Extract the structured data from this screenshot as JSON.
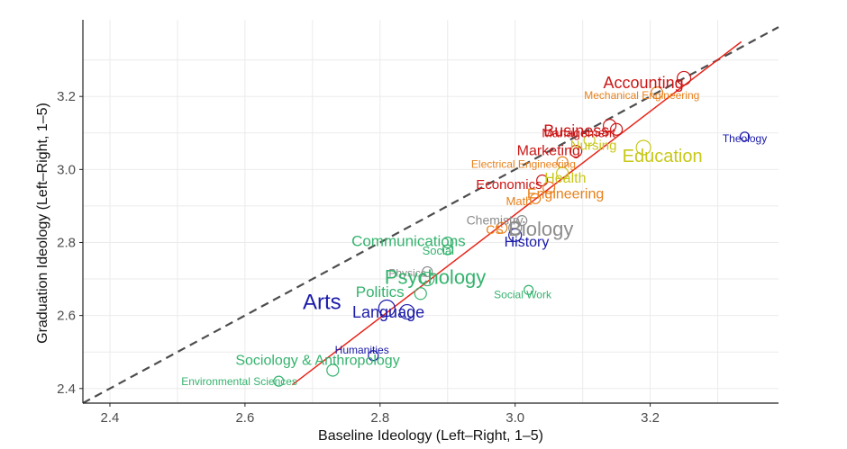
{
  "chart_data": {
    "type": "scatter",
    "title": "",
    "xlabel": "Baseline Ideology (Left–Right, 1–5)",
    "ylabel": "Graduation Ideology (Left–Right, 1–5)",
    "xlim": [
      2.36,
      3.39
    ],
    "ylim": [
      2.36,
      3.41
    ],
    "x_ticks": [
      2.4,
      2.6,
      2.8,
      3.0,
      3.2
    ],
    "y_ticks": [
      2.4,
      2.6,
      2.8,
      3.0,
      3.2
    ],
    "x_tick_labels": [
      "2.4",
      "2.6",
      "2.8",
      "3.0",
      "3.2"
    ],
    "y_tick_labels": [
      "2.4",
      "2.6",
      "2.8",
      "3.0",
      "3.2"
    ],
    "grid": true,
    "reference_line": {
      "style": "dashed",
      "color": "#4d4d4d",
      "x": [
        2.36,
        3.39
      ],
      "y": [
        2.36,
        3.39
      ]
    },
    "fit_line": {
      "color": "#e8251a",
      "x": [
        2.67,
        3.335
      ],
      "y": [
        2.41,
        3.35
      ]
    },
    "colors": {
      "red": "#cc1616",
      "orange": "#e8801a",
      "yellow": "#c8c81a",
      "gray": "#8c8c8c",
      "green": "#35b36e",
      "blue": "#1a1aaa"
    },
    "points": [
      {
        "label": "Accounting",
        "x": 3.25,
        "y": 3.25,
        "size": 15,
        "color": "#cc1616",
        "dx": -5,
        "dy": 1.21,
        "font": 18
      },
      {
        "label": "Mechanical Engineering",
        "x": 3.21,
        "y": 3.21,
        "size": 13,
        "color": "#e8801a",
        "dx": -2.8,
        "dy": 1.15,
        "font": 12
      },
      {
        "label": "Business",
        "x": 3.14,
        "y": 3.12,
        "size": 14,
        "color": "#cc1616",
        "dx": -4.1,
        "dy": 1.31,
        "font": 18
      },
      {
        "label": "Management",
        "x": 3.15,
        "y": 3.11,
        "size": 13,
        "color": "#cc1616",
        "dx": -6,
        "dy": 1.25,
        "font": 14
      },
      {
        "label": "Theology",
        "x": 3.34,
        "y": 3.09,
        "size": 10,
        "color": "#1a1aaa",
        "dx": 0,
        "dy": 1.04,
        "font": 12
      },
      {
        "label": "Nursing",
        "x": 3.11,
        "y": 3.08,
        "size": 12,
        "color": "#c8c81a",
        "dx": 0.6,
        "dy": 1.44,
        "font": 15
      },
      {
        "label": "Education",
        "x": 3.19,
        "y": 3.06,
        "size": 16,
        "color": "#c8c81a",
        "dx": 2.1,
        "dy": 1.61,
        "font": 20
      },
      {
        "label": "Marketing",
        "x": 3.09,
        "y": 3.05,
        "size": 13,
        "color": "#cc1616",
        "dx": -3.8,
        "dy": 0.55,
        "font": 16
      },
      {
        "label": "Electrical Engineering",
        "x": 3.07,
        "y": 3.02,
        "size": 12,
        "color": "#e8801a",
        "dx": -7.2,
        "dy": 1.04,
        "font": 12
      },
      {
        "label": "Health",
        "x": 3.07,
        "y": 2.99,
        "size": 13,
        "color": "#c8c81a",
        "dx": 0.4,
        "dy": 1.31,
        "font": 16
      },
      {
        "label": "Economics",
        "x": 3.04,
        "y": 2.97,
        "size": 12,
        "color": "#cc1616",
        "dx": -4.9,
        "dy": 1.28,
        "font": 15
      },
      {
        "label": "Engineering",
        "x": 3.05,
        "y": 2.95,
        "size": 13,
        "color": "#e8801a",
        "dx": 2.3,
        "dy": 1.51,
        "font": 16
      },
      {
        "label": "Math",
        "x": 3.03,
        "y": 2.92,
        "size": 11,
        "color": "#e8801a",
        "dx": -2.8,
        "dy": 1.11,
        "font": 13
      },
      {
        "label": "Chemistry",
        "x": 3.01,
        "y": 2.86,
        "size": 11,
        "color": "#8c8c8c",
        "dx": -4.3,
        "dy": 0.64,
        "font": 14
      },
      {
        "label": "CS",
        "x": 2.98,
        "y": 2.84,
        "size": 12,
        "color": "#e8801a",
        "dx": -1.1,
        "dy": 0.95,
        "font": 14
      },
      {
        "label": "Biology",
        "x": 3.0,
        "y": 2.84,
        "size": 14,
        "color": "#8c8c8c",
        "dx": 2.6,
        "dy": 0.8,
        "font": 22
      },
      {
        "label": "History",
        "x": 3.0,
        "y": 2.82,
        "size": 14,
        "color": "#1a1aaa",
        "dx": 1.6,
        "dy": 1.58,
        "font": 16
      },
      {
        "label": "Communications",
        "x": 2.9,
        "y": 2.8,
        "size": 12,
        "color": "#35b36e",
        "dx": -5.1,
        "dy": 0.45,
        "font": 17
      },
      {
        "label": "Social",
        "x": 2.9,
        "y": 2.78,
        "size": 11,
        "color": "#35b36e",
        "dx": -1.6,
        "dy": 0.82,
        "font": 13
      },
      {
        "label": "Physics",
        "x": 2.87,
        "y": 2.72,
        "size": 11,
        "color": "#8c8c8c",
        "dx": -3.7,
        "dy": 0.9,
        "font": 12
      },
      {
        "label": "Psychology",
        "x": 2.87,
        "y": 2.7,
        "size": 15,
        "color": "#35b36e",
        "dx": 0.8,
        "dy": 0.5,
        "font": 22
      },
      {
        "label": "Social Work",
        "x": 3.02,
        "y": 2.67,
        "size": 10,
        "color": "#35b36e",
        "dx": -1.1,
        "dy": 1.52,
        "font": 12
      },
      {
        "label": "Politics",
        "x": 2.86,
        "y": 2.66,
        "size": 13,
        "color": "#35b36e",
        "dx": -5.3,
        "dy": 0.42,
        "font": 17
      },
      {
        "label": "Arts",
        "x": 2.81,
        "y": 2.62,
        "size": 18,
        "color": "#1a1aaa",
        "dx": -6,
        "dy": 0.1,
        "font": 24
      },
      {
        "label": "Language",
        "x": 2.84,
        "y": 2.61,
        "size": 16,
        "color": "#1a1aaa",
        "dx": -2.3,
        "dy": 0.7,
        "font": 18
      },
      {
        "label": "Humanities",
        "x": 2.79,
        "y": 2.49,
        "size": 11,
        "color": "#1a1aaa",
        "dx": -2.1,
        "dy": -0.36,
        "font": 12
      },
      {
        "label": "Sociology & Anthropology",
        "x": 2.73,
        "y": 2.45,
        "size": 13,
        "color": "#35b36e",
        "dx": -2.1,
        "dy": -0.74,
        "font": 16
      },
      {
        "label": "Environmental Sciences",
        "x": 2.65,
        "y": 2.42,
        "size": 11,
        "color": "#35b36e",
        "dx": -7.3,
        "dy": 0.73,
        "font": 12
      }
    ]
  }
}
